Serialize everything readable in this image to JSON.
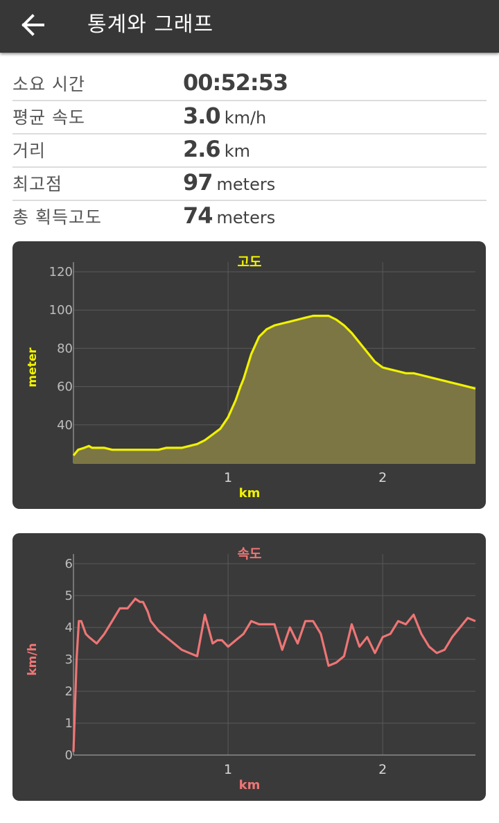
{
  "appbar": {
    "title": "통계와 그래프",
    "back_icon": "arrow-left-icon"
  },
  "stats": [
    {
      "label": "소요 시간",
      "value": "00:52:53",
      "unit": ""
    },
    {
      "label": "평균 속도",
      "value": "3.0",
      "unit": "km/h"
    },
    {
      "label": "거리",
      "value": "2.6",
      "unit": "km"
    },
    {
      "label": "최고점",
      "value": "97",
      "unit": "meters"
    },
    {
      "label": "총 획득고도",
      "value": "74",
      "unit": "meters"
    }
  ],
  "colors": {
    "appbar": "#373737",
    "chart_bg": "#3a3a3a",
    "altitude": "#f2f200",
    "altitude_fill": "#7c7645",
    "speed": "#ee7575"
  },
  "chart_data": [
    {
      "type": "area",
      "title": "고도",
      "xlabel": "km",
      "ylabel": "meter",
      "xlim": [
        0,
        2.6
      ],
      "ylim": [
        20,
        120
      ],
      "yticks": [
        "40",
        "60",
        "80",
        "100",
        "120"
      ],
      "xticks": [
        "1",
        "2"
      ],
      "series": [
        {
          "x": [
            0,
            0.03,
            0.07,
            0.1,
            0.12,
            0.15,
            0.2,
            0.25,
            0.3,
            0.4,
            0.5,
            0.55,
            0.6,
            0.65,
            0.7,
            0.75,
            0.8,
            0.85,
            0.9,
            0.95,
            1.0,
            1.05,
            1.08,
            1.1,
            1.15,
            1.2,
            1.25,
            1.3,
            1.35,
            1.4,
            1.45,
            1.5,
            1.55,
            1.6,
            1.65,
            1.7,
            1.75,
            1.8,
            1.85,
            1.9,
            1.95,
            2.0,
            2.05,
            2.1,
            2.15,
            2.2,
            2.25,
            2.3,
            2.35,
            2.4,
            2.45,
            2.5,
            2.55,
            2.6
          ],
          "y": [
            24,
            27,
            28,
            29,
            28,
            28,
            28,
            27,
            27,
            27,
            27,
            27,
            28,
            28,
            28,
            29,
            30,
            32,
            35,
            38,
            44,
            53,
            60,
            64,
            77,
            86,
            90,
            92,
            93,
            94,
            95,
            96,
            97,
            97,
            97,
            95,
            92,
            88,
            83,
            78,
            73,
            70,
            69,
            68,
            67,
            67,
            66,
            65,
            64,
            63,
            62,
            61,
            60,
            59
          ]
        }
      ]
    },
    {
      "type": "line",
      "title": "속도",
      "xlabel": "km",
      "ylabel": "km/h",
      "xlim": [
        0,
        2.6
      ],
      "ylim": [
        0,
        6
      ],
      "yticks": [
        "0",
        "1",
        "2",
        "3",
        "4",
        "5",
        "6"
      ],
      "xticks": [
        "1",
        "2"
      ],
      "series": [
        {
          "x": [
            0,
            0.02,
            0.035,
            0.05,
            0.08,
            0.1,
            0.15,
            0.2,
            0.25,
            0.3,
            0.35,
            0.4,
            0.43,
            0.45,
            0.48,
            0.5,
            0.55,
            0.6,
            0.65,
            0.7,
            0.75,
            0.8,
            0.85,
            0.9,
            0.93,
            0.96,
            1.0,
            1.05,
            1.1,
            1.15,
            1.2,
            1.25,
            1.3,
            1.35,
            1.4,
            1.45,
            1.5,
            1.55,
            1.6,
            1.65,
            1.7,
            1.75,
            1.8,
            1.85,
            1.9,
            1.95,
            2.0,
            2.05,
            2.1,
            2.15,
            2.2,
            2.25,
            2.3,
            2.35,
            2.4,
            2.45,
            2.5,
            2.55,
            2.6
          ],
          "y": [
            0.1,
            3.0,
            4.2,
            4.2,
            3.8,
            3.7,
            3.5,
            3.8,
            4.2,
            4.6,
            4.6,
            4.9,
            4.8,
            4.8,
            4.5,
            4.2,
            3.9,
            3.7,
            3.5,
            3.3,
            3.2,
            3.1,
            4.4,
            3.5,
            3.6,
            3.6,
            3.4,
            3.6,
            3.8,
            4.2,
            4.1,
            4.1,
            4.1,
            3.3,
            4.0,
            3.5,
            4.2,
            4.2,
            3.8,
            2.8,
            2.9,
            3.1,
            4.1,
            3.4,
            3.7,
            3.2,
            3.7,
            3.8,
            4.2,
            4.1,
            4.4,
            3.8,
            3.4,
            3.2,
            3.3,
            3.7,
            4.0,
            4.3,
            4.2
          ]
        }
      ]
    }
  ]
}
